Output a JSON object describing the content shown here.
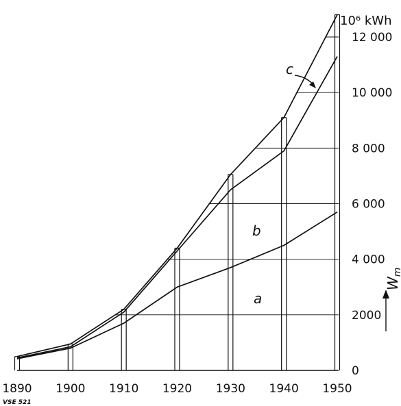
{
  "chart_data": {
    "type": "area",
    "unit_label": "10⁶ kWh",
    "ylabel": "W_m",
    "ylabel_main": "W",
    "ylabel_sub": "m",
    "source_code": "VSE 521",
    "xlim": [
      1890,
      1950
    ],
    "ylim": [
      0,
      12000
    ],
    "x_ticks": [
      1890,
      1900,
      1910,
      1920,
      1930,
      1940,
      1950
    ],
    "y_ticks": [
      0,
      2000,
      4000,
      6000,
      8000,
      10000,
      12000
    ],
    "y_tick_labels": [
      "0",
      "2000",
      "4 000",
      "6 000",
      "8 000",
      "10 000",
      "12 000"
    ],
    "series": [
      {
        "name": "a",
        "points": [
          [
            1890,
            420
          ],
          [
            1900,
            800
          ],
          [
            1910,
            1700
          ],
          [
            1920,
            3000
          ],
          [
            1930,
            3700
          ],
          [
            1940,
            4500
          ],
          [
            1950,
            5700
          ]
        ]
      },
      {
        "name": "b",
        "points": [
          [
            1890,
            450
          ],
          [
            1900,
            850
          ],
          [
            1910,
            2100
          ],
          [
            1920,
            4300
          ],
          [
            1930,
            6500
          ],
          [
            1940,
            7900
          ],
          [
            1950,
            11300
          ]
        ]
      },
      {
        "name": "c",
        "points": [
          [
            1890,
            500
          ],
          [
            1900,
            950
          ],
          [
            1910,
            2200
          ],
          [
            1920,
            4400
          ],
          [
            1930,
            7050
          ],
          [
            1940,
            9100
          ],
          [
            1950,
            12800
          ]
        ]
      }
    ]
  }
}
